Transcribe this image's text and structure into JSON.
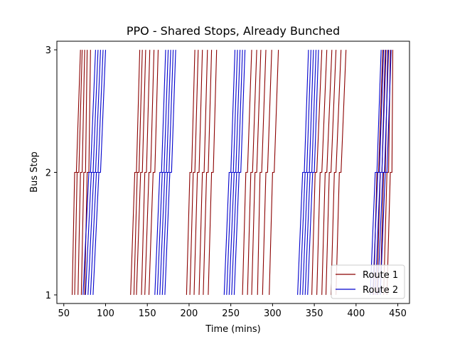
{
  "chart_data": {
    "type": "line",
    "title": "PPO - Shared Stops, Already Bunched",
    "xlabel": "Time (mins)",
    "ylabel": "Bus Stop",
    "xlim": [
      41.7,
      464.0
    ],
    "ylim": [
      0.93,
      3.07
    ],
    "x_ticks": [
      50,
      100,
      150,
      200,
      250,
      300,
      350,
      400,
      450
    ],
    "x_tick_labels": [
      "50",
      "100",
      "150",
      "200",
      "250",
      "300",
      "350",
      "400",
      "450"
    ],
    "y_ticks": [
      1,
      2,
      3
    ],
    "y_tick_labels": [
      "1",
      "2",
      "3"
    ],
    "grid": false,
    "legend_position": "lower-right",
    "series": [
      {
        "name": "Route 1",
        "color": "#8b0000",
        "trips": [
          {
            "t0": 60,
            "a2": 63,
            "d2": 65,
            "a3": 70
          },
          {
            "t0": 63,
            "a2": 66,
            "d2": 68,
            "a3": 72
          },
          {
            "t0": 67,
            "a2": 70,
            "d2": 72,
            "a3": 75
          },
          {
            "t0": 71,
            "a2": 74,
            "d2": 76,
            "a3": 78
          },
          {
            "t0": 75,
            "a2": 78,
            "d2": 80,
            "a3": 82
          },
          {
            "t0": 130,
            "a2": 135,
            "d2": 137,
            "a3": 141
          },
          {
            "t0": 134,
            "a2": 138,
            "d2": 140,
            "a3": 144
          },
          {
            "t0": 137,
            "a2": 142,
            "d2": 144,
            "a3": 148
          },
          {
            "t0": 143,
            "a2": 147,
            "d2": 149,
            "a3": 153
          },
          {
            "t0": 147,
            "a2": 152,
            "d2": 154,
            "a3": 158
          },
          {
            "t0": 152,
            "a2": 157,
            "d2": 159,
            "a3": 163
          },
          {
            "t0": 197,
            "a2": 201,
            "d2": 203,
            "a3": 207
          },
          {
            "t0": 201,
            "a2": 205,
            "d2": 207,
            "a3": 211
          },
          {
            "t0": 206,
            "a2": 210,
            "d2": 212,
            "a3": 216
          },
          {
            "t0": 212,
            "a2": 216,
            "d2": 218,
            "a3": 222
          },
          {
            "t0": 217,
            "a2": 221,
            "d2": 223,
            "a3": 227
          },
          {
            "t0": 223,
            "a2": 227,
            "d2": 229,
            "a3": 233
          },
          {
            "t0": 264,
            "a2": 268,
            "d2": 270,
            "a3": 275
          },
          {
            "t0": 270,
            "a2": 274,
            "d2": 276,
            "a3": 281
          },
          {
            "t0": 275,
            "a2": 279,
            "d2": 281,
            "a3": 286
          },
          {
            "t0": 282,
            "a2": 285,
            "d2": 287,
            "a3": 292
          },
          {
            "t0": 288,
            "a2": 292,
            "d2": 294,
            "a3": 299
          },
          {
            "t0": 296,
            "a2": 300,
            "d2": 302,
            "a3": 307
          },
          {
            "t0": 347,
            "a2": 351,
            "d2": 353,
            "a3": 359
          },
          {
            "t0": 353,
            "a2": 357,
            "d2": 359,
            "a3": 365
          },
          {
            "t0": 359,
            "a2": 363,
            "d2": 365,
            "a3": 371
          },
          {
            "t0": 364,
            "a2": 368,
            "d2": 370,
            "a3": 376
          },
          {
            "t0": 370,
            "a2": 374,
            "d2": 376,
            "a3": 382
          },
          {
            "t0": 376,
            "a2": 380,
            "d2": 382,
            "a3": 388
          },
          {
            "t0": 421,
            "a2": 425,
            "d2": 427,
            "a3": 432
          },
          {
            "t0": 425,
            "a2": 429,
            "d2": 431,
            "a3": 435
          },
          {
            "t0": 429,
            "a2": 433,
            "d2": 435,
            "a3": 438
          },
          {
            "t0": 433,
            "a2": 437,
            "d2": 439,
            "a3": 441
          },
          {
            "t0": 437,
            "a2": 441,
            "d2": 443,
            "a3": 444
          }
        ]
      },
      {
        "name": "Route 2",
        "color": "#0000cd",
        "trips": [
          {
            "t0": 73,
            "a2": 80,
            "d2": 82,
            "a3": 88
          },
          {
            "t0": 76,
            "a2": 83,
            "d2": 85,
            "a3": 91
          },
          {
            "t0": 79,
            "a2": 86,
            "d2": 88,
            "a3": 94
          },
          {
            "t0": 82,
            "a2": 89,
            "d2": 91,
            "a3": 97
          },
          {
            "t0": 85,
            "a2": 92,
            "d2": 94,
            "a3": 100
          },
          {
            "t0": 159,
            "a2": 165,
            "d2": 167,
            "a3": 172
          },
          {
            "t0": 162,
            "a2": 168,
            "d2": 170,
            "a3": 175
          },
          {
            "t0": 165,
            "a2": 171,
            "d2": 173,
            "a3": 178
          },
          {
            "t0": 168,
            "a2": 174,
            "d2": 176,
            "a3": 181
          },
          {
            "t0": 171,
            "a2": 177,
            "d2": 179,
            "a3": 184
          },
          {
            "t0": 242,
            "a2": 248,
            "d2": 250,
            "a3": 255
          },
          {
            "t0": 245,
            "a2": 251,
            "d2": 253,
            "a3": 258
          },
          {
            "t0": 248,
            "a2": 254,
            "d2": 256,
            "a3": 261
          },
          {
            "t0": 251,
            "a2": 257,
            "d2": 259,
            "a3": 264
          },
          {
            "t0": 254,
            "a2": 260,
            "d2": 262,
            "a3": 267
          },
          {
            "t0": 330,
            "a2": 336,
            "d2": 338,
            "a3": 343
          },
          {
            "t0": 333,
            "a2": 339,
            "d2": 341,
            "a3": 346
          },
          {
            "t0": 336,
            "a2": 342,
            "d2": 344,
            "a3": 349
          },
          {
            "t0": 339,
            "a2": 345,
            "d2": 347,
            "a3": 352
          },
          {
            "t0": 342,
            "a2": 348,
            "d2": 350,
            "a3": 355
          },
          {
            "t0": 417,
            "a2": 423,
            "d2": 425,
            "a3": 430
          },
          {
            "t0": 420,
            "a2": 426,
            "d2": 428,
            "a3": 433
          },
          {
            "t0": 423,
            "a2": 429,
            "d2": 431,
            "a3": 436
          },
          {
            "t0": 426,
            "a2": 432,
            "d2": 434,
            "a3": 439
          },
          {
            "t0": 429,
            "a2": 435,
            "d2": 437,
            "a3": 442
          }
        ]
      }
    ]
  }
}
